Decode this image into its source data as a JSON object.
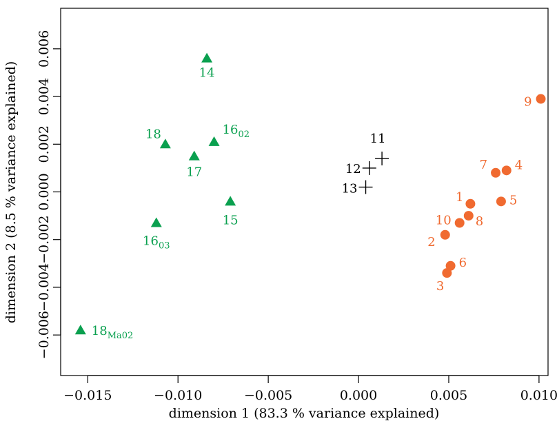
{
  "chart_data": {
    "type": "scatter",
    "title": "",
    "xlabel": "dimension 1 (83.3 % variance explained)",
    "ylabel": "dimension 2 (8.5 % variance explained)",
    "xlim": [
      -0.0165,
      0.0105
    ],
    "ylim": [
      -0.0077,
      0.0077
    ],
    "xticks": [
      -0.015,
      -0.01,
      -0.005,
      0.0,
      0.005,
      0.01
    ],
    "xtick_labels": [
      "−0.015",
      "−0.010",
      "−0.005",
      "0.000",
      "0.005",
      "0.010"
    ],
    "yticks": [
      -0.006,
      -0.004,
      -0.002,
      0.0,
      0.002,
      0.004,
      0.006
    ],
    "ytick_labels": [
      "−0.006",
      "−0.004",
      "−0.002",
      "0.000",
      "0.002",
      "0.004",
      "0.006"
    ],
    "grid": false,
    "legend": "none",
    "series": [
      {
        "marker": "triangle",
        "color": "#0aa04f",
        "points": [
          {
            "label": "14",
            "sub": "",
            "x": -0.0084,
            "y": 0.0056
          },
          {
            "label": "16",
            "sub": "02",
            "x": -0.008,
            "y": 0.0021
          },
          {
            "label": "18",
            "sub": "",
            "x": -0.0107,
            "y": 0.002
          },
          {
            "label": "17",
            "sub": "",
            "x": -0.0091,
            "y": 0.0015
          },
          {
            "label": "15",
            "sub": "",
            "x": -0.0071,
            "y": -0.0004
          },
          {
            "label": "16",
            "sub": "03",
            "x": -0.0112,
            "y": -0.0013
          },
          {
            "label": "18",
            "sub": "Ma02",
            "x": -0.0154,
            "y": -0.0058
          }
        ]
      },
      {
        "marker": "plus",
        "color": "#000000",
        "points": [
          {
            "label": "11",
            "sub": "",
            "x": 0.0013,
            "y": 0.0014
          },
          {
            "label": "12",
            "sub": "",
            "x": 0.0006,
            "y": 0.001
          },
          {
            "label": "13",
            "sub": "",
            "x": 0.0004,
            "y": 0.0002
          }
        ]
      },
      {
        "marker": "circle",
        "color": "#f06a30",
        "points": [
          {
            "label": "9",
            "sub": "",
            "x": 0.0101,
            "y": 0.0039
          },
          {
            "label": "7",
            "sub": "",
            "x": 0.0076,
            "y": 0.0008
          },
          {
            "label": "4",
            "sub": "",
            "x": 0.0082,
            "y": 0.0009
          },
          {
            "label": "1",
            "sub": "",
            "x": 0.0062,
            "y": -0.0005
          },
          {
            "label": "5",
            "sub": "",
            "x": 0.0079,
            "y": -0.0004
          },
          {
            "label": "10",
            "sub": "",
            "x": 0.0056,
            "y": -0.0013
          },
          {
            "label": "8",
            "sub": "",
            "x": 0.0061,
            "y": -0.001
          },
          {
            "label": "2",
            "sub": "",
            "x": 0.0048,
            "y": -0.0018
          },
          {
            "label": "6",
            "sub": "",
            "x": 0.0051,
            "y": -0.0031
          },
          {
            "label": "3",
            "sub": "",
            "x": 0.0049,
            "y": -0.0034
          }
        ]
      }
    ]
  }
}
